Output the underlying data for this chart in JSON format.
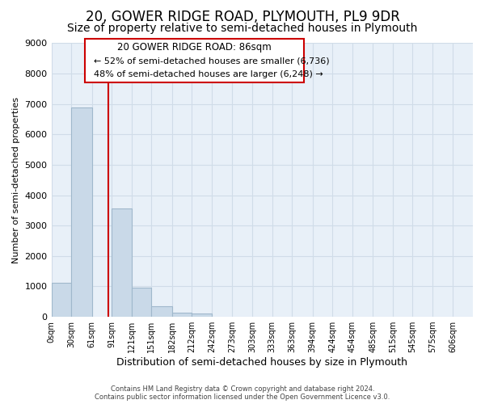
{
  "title": "20, GOWER RIDGE ROAD, PLYMOUTH, PL9 9DR",
  "subtitle": "Size of property relative to semi-detached houses in Plymouth",
  "bar_left_edges": [
    0,
    30,
    61,
    91,
    121,
    151,
    182,
    212,
    242,
    273,
    303,
    333,
    363,
    394,
    424,
    454,
    485,
    515,
    545,
    575
  ],
  "bar_widths": [
    30,
    31,
    30,
    30,
    30,
    31,
    30,
    30,
    31,
    30,
    30,
    30,
    31,
    30,
    30,
    31,
    30,
    30,
    30,
    31
  ],
  "bar_heights": [
    1130,
    6880,
    0,
    3560,
    970,
    340,
    130,
    100,
    0,
    0,
    0,
    0,
    0,
    0,
    0,
    0,
    0,
    0,
    0,
    0
  ],
  "bar_color": "#c9d9e8",
  "bar_edgecolor": "#a0b8cc",
  "property_line_x": 86,
  "property_line_color": "#cc0000",
  "ylim": [
    0,
    9000
  ],
  "yticks": [
    0,
    1000,
    2000,
    3000,
    4000,
    5000,
    6000,
    7000,
    8000,
    9000
  ],
  "xtick_labels": [
    "0sqm",
    "30sqm",
    "61sqm",
    "91sqm",
    "121sqm",
    "151sqm",
    "182sqm",
    "212sqm",
    "242sqm",
    "273sqm",
    "303sqm",
    "333sqm",
    "363sqm",
    "394sqm",
    "424sqm",
    "454sqm",
    "485sqm",
    "515sqm",
    "545sqm",
    "575sqm",
    "606sqm"
  ],
  "xtick_positions": [
    0,
    30,
    61,
    91,
    121,
    151,
    182,
    212,
    242,
    273,
    303,
    333,
    363,
    394,
    424,
    454,
    485,
    515,
    545,
    575,
    606
  ],
  "xlabel": "Distribution of semi-detached houses by size in Plymouth",
  "ylabel": "Number of semi-detached properties",
  "annotation_title": "20 GOWER RIDGE ROAD: 86sqm",
  "annotation_line1": "← 52% of semi-detached houses are smaller (6,736)",
  "annotation_line2": "48% of semi-detached houses are larger (6,248) →",
  "footer_line1": "Contains HM Land Registry data © Crown copyright and database right 2024.",
  "footer_line2": "Contains public sector information licensed under the Open Government Licence v3.0.",
  "background_color": "#ffffff",
  "plot_bg_color": "#e8f0f8",
  "grid_color": "#d0dce8",
  "title_fontsize": 12,
  "subtitle_fontsize": 10,
  "annotation_box_color": "#cc0000"
}
